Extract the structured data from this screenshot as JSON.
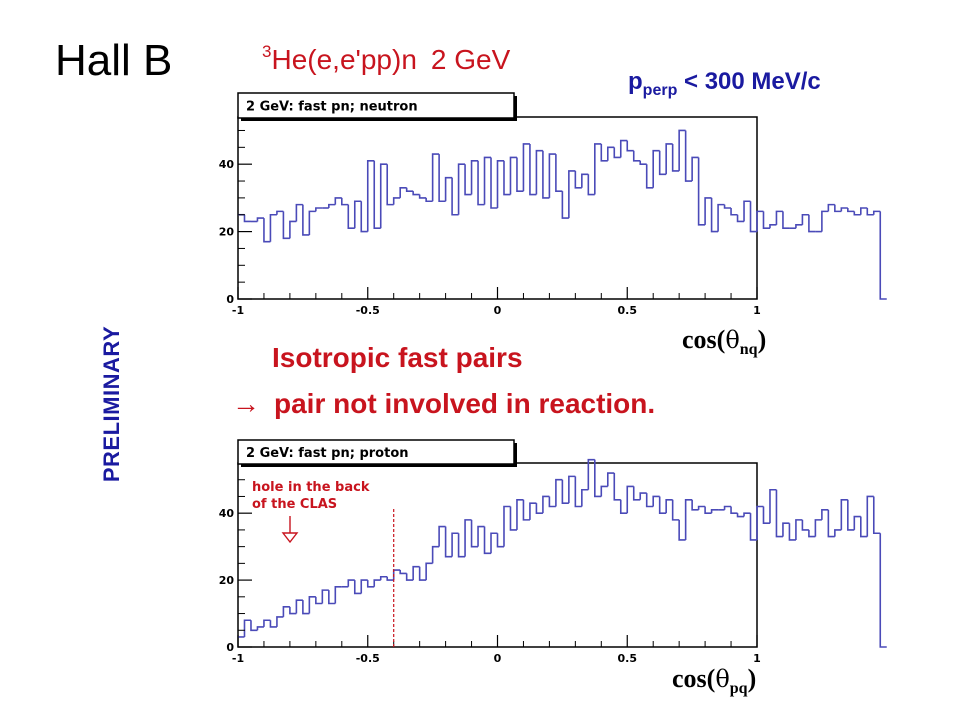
{
  "header": {
    "title": "Hall B",
    "reaction_sup": "3",
    "reaction_rest": "He(e,e'pp)n",
    "energy": "2 GeV",
    "cut_p": "p",
    "cut_sub": "perp",
    "cut_rest": " < 300 MeV/c"
  },
  "preliminary": "PRELIMINARY",
  "message": {
    "line1": "Isotropic fast pairs",
    "arrow": "→",
    "line2": "pair not involved in reaction."
  },
  "colors": {
    "histogram": "#4a4ab8",
    "annotation": "#c8141e",
    "headline": "#c8141e",
    "label": "#1a1aa0"
  },
  "chart_data": [
    {
      "type": "bar",
      "histogram": true,
      "title": "2 GeV: fast pn; neutron",
      "xlabel_prefix": "cos(",
      "xlabel_symbol": "θ",
      "xlabel_sub": "nq",
      "xlabel_suffix": ")",
      "xlim": [
        -1,
        1
      ],
      "ylim": [
        0,
        54
      ],
      "xticks": [
        -1,
        -0.5,
        0,
        0.5,
        1
      ],
      "xtick_labels": [
        "-1",
        "-0.5",
        "0",
        "0.5",
        "1"
      ],
      "yticks": [
        0,
        20,
        40
      ],
      "ytick_labels": [
        "0",
        "20",
        "40"
      ],
      "bin_edges_start": -1,
      "bin_width": 0.025,
      "values": [
        25,
        23,
        23,
        24,
        17,
        25,
        26,
        18,
        23,
        28,
        19,
        26,
        27,
        27,
        28,
        30,
        28,
        21,
        29,
        20,
        41,
        21,
        40,
        28,
        30,
        33,
        32,
        31,
        30,
        29,
        43,
        29,
        36,
        25,
        40,
        31,
        41,
        28,
        42,
        27,
        41,
        31,
        42,
        32,
        46,
        31,
        44,
        30,
        43,
        32,
        24,
        38,
        33,
        37,
        31,
        46,
        41,
        45,
        42,
        47,
        44,
        41,
        40,
        33,
        44,
        37,
        46,
        38,
        50,
        35,
        42,
        22,
        30,
        20,
        28,
        27,
        25,
        23,
        29,
        20,
        26,
        21,
        22,
        26,
        21,
        21,
        22,
        25,
        20,
        20,
        26,
        28,
        26,
        27,
        26,
        25,
        27,
        25,
        26,
        0
      ]
    },
    {
      "type": "bar",
      "histogram": true,
      "title": "2 GeV: fast pn; proton",
      "xlabel_prefix": "cos(",
      "xlabel_symbol": "θ",
      "xlabel_sub": "pq",
      "xlabel_suffix": ")",
      "xlim": [
        -1,
        1
      ],
      "ylim": [
        0,
        55
      ],
      "xticks": [
        -1,
        -0.5,
        0,
        0.5,
        1
      ],
      "xtick_labels": [
        "-1",
        "-0.5",
        "0",
        "0.5",
        "1"
      ],
      "yticks": [
        0,
        20,
        40
      ],
      "ytick_labels": [
        "0",
        "20",
        "40"
      ],
      "bin_edges_start": -1,
      "bin_width": 0.025,
      "values": [
        3,
        8,
        5,
        6,
        8,
        6,
        9,
        12,
        10,
        14,
        10,
        15,
        13,
        17,
        13,
        18,
        18,
        20,
        16,
        20,
        18,
        20,
        21,
        20,
        23,
        22,
        20,
        24,
        20,
        25,
        30,
        36,
        27,
        34,
        27,
        38,
        30,
        36,
        28,
        34,
        30,
        42,
        35,
        44,
        38,
        43,
        40,
        45,
        42,
        50,
        43,
        51,
        42,
        47,
        56,
        45,
        48,
        52,
        44,
        40,
        48,
        44,
        46,
        42,
        45,
        40,
        44,
        38,
        32,
        44,
        41,
        42,
        40,
        41,
        41,
        42,
        40,
        39,
        40,
        32,
        42,
        37,
        47,
        33,
        37,
        32,
        38,
        35,
        33,
        38,
        41,
        33,
        35,
        44,
        35,
        39,
        33,
        45,
        34,
        0
      ],
      "annotation": {
        "line1": "hole in the back",
        "line2": "of the CLAS",
        "x": -0.4
      }
    }
  ]
}
